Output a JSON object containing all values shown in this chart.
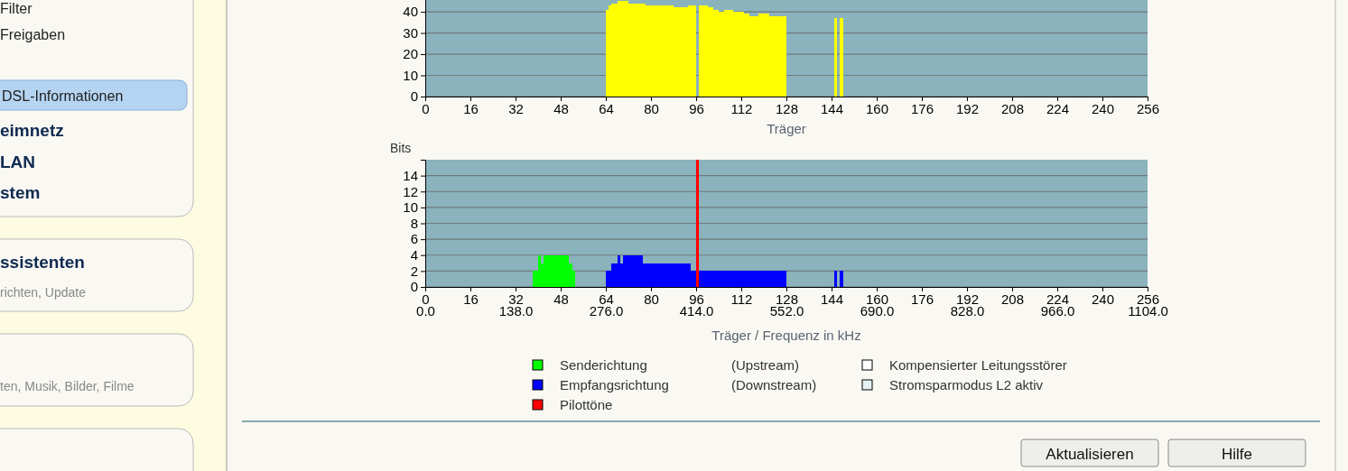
{
  "chart_data": [
    {
      "type": "area",
      "xlabel": "Träger",
      "x": [
        64,
        65,
        66,
        67,
        68,
        69,
        70,
        71,
        72,
        73,
        74,
        75,
        76,
        77,
        78,
        79,
        80,
        81,
        82,
        83,
        84,
        85,
        86,
        87,
        88,
        89,
        90,
        91,
        92,
        93,
        94,
        95,
        97,
        98,
        99,
        100,
        101,
        102,
        103,
        104,
        105,
        106,
        107,
        108,
        109,
        110,
        111,
        112,
        113,
        114,
        115,
        116,
        117,
        118,
        119,
        120,
        121,
        122,
        123,
        124,
        125,
        126,
        127,
        145,
        147
      ],
      "series": [
        {
          "color": "#ffff00",
          "values": [
            41,
            43,
            44,
            44,
            45,
            45,
            45,
            45,
            44,
            44,
            44,
            44,
            44,
            44,
            43,
            43,
            43,
            43,
            43,
            43,
            43,
            43,
            43,
            43,
            42,
            42,
            42,
            42,
            42,
            43,
            43,
            43,
            43,
            43,
            43,
            42,
            42,
            41,
            41,
            40,
            40,
            41,
            41,
            41,
            40,
            40,
            40,
            40,
            39,
            39,
            38,
            38,
            38,
            39,
            39,
            39,
            39,
            38,
            38,
            38,
            38,
            38,
            38,
            37,
            37
          ]
        }
      ],
      "xlim": [
        0,
        256
      ],
      "xticks": [
        0,
        16,
        32,
        48,
        64,
        80,
        96,
        112,
        128,
        144,
        160,
        176,
        192,
        208,
        224,
        240,
        256
      ],
      "ylim": [
        0,
        46
      ],
      "yticks": [
        0,
        10,
        20,
        30,
        40
      ],
      "grid": "y"
    },
    {
      "type": "area",
      "xlabel": "Träger / Frequenz in kHz",
      "ylabel": "Bits",
      "series": [
        {
          "name": "Senderichtung (Upstream)",
          "color": "#00ff00",
          "x": [
            38,
            39,
            40,
            41,
            42,
            43,
            44,
            45,
            46,
            47,
            48,
            49,
            50,
            51,
            52
          ],
          "values": [
            2,
            2,
            4,
            3,
            4,
            4,
            4,
            4,
            4,
            4,
            4,
            4,
            4,
            3,
            2
          ]
        },
        {
          "name": "Empfangsrichtung (Downstream)",
          "color": "#0000ff",
          "x": [
            64,
            65,
            66,
            67,
            68,
            69,
            70,
            71,
            72,
            73,
            74,
            75,
            76,
            77,
            78,
            79,
            80,
            81,
            82,
            83,
            84,
            85,
            86,
            87,
            88,
            89,
            90,
            91,
            92,
            93,
            94,
            95,
            96,
            97,
            98,
            99,
            100,
            101,
            102,
            103,
            104,
            105,
            106,
            107,
            108,
            109,
            110,
            111,
            112,
            113,
            114,
            115,
            116,
            117,
            118,
            119,
            120,
            121,
            122,
            123,
            124,
            125,
            126,
            127,
            145,
            147
          ],
          "values": [
            2,
            2,
            3,
            3,
            4,
            3,
            4,
            4,
            4,
            4,
            4,
            4,
            4,
            3,
            3,
            3,
            3,
            3,
            3,
            3,
            3,
            3,
            3,
            3,
            3,
            3,
            3,
            3,
            3,
            3,
            2,
            2,
            2,
            2,
            2,
            2,
            2,
            2,
            2,
            2,
            2,
            2,
            2,
            2,
            2,
            2,
            2,
            2,
            2,
            2,
            2,
            2,
            2,
            2,
            2,
            2,
            2,
            2,
            2,
            2,
            2,
            2,
            2,
            2,
            2,
            2
          ]
        },
        {
          "name": "Pilottöne",
          "type": "bar",
          "color": "#ff0000",
          "x": [
            96
          ],
          "values": [
            16
          ]
        },
        {
          "name": "Kompensierter Leitungsstörer",
          "color": "#ffffff"
        },
        {
          "name": "Stromsparmodus L2 aktiv",
          "color": "#e4f2f4"
        }
      ],
      "xlim": [
        0,
        256
      ],
      "xticks": [
        0,
        16,
        32,
        48,
        64,
        80,
        96,
        112,
        128,
        144,
        160,
        176,
        192,
        208,
        224,
        240,
        256
      ],
      "x2lim": [
        0,
        1104
      ],
      "x2ticks": [
        {
          "value": 0,
          "label": "0.0"
        },
        {
          "value": 138,
          "label": "138.0"
        },
        {
          "value": 276,
          "label": "276.0"
        },
        {
          "value": 414,
          "label": "414.0"
        },
        {
          "value": 552,
          "label": "552.0"
        },
        {
          "value": 690,
          "label": "690.0"
        },
        {
          "value": 828,
          "label": "828.0"
        },
        {
          "value": 966,
          "label": "966.0"
        },
        {
          "value": 1104,
          "label": "1104.0"
        }
      ],
      "ylim": [
        0,
        16
      ],
      "yticks": [
        0,
        2,
        4,
        6,
        8,
        10,
        12,
        14
      ],
      "grid": "y",
      "legend": "bottom"
    },
    {
      "type": "other",
      "annotations": [
        "Filter",
        "Freigaben",
        "DSL-Informationen",
        "eimnetz",
        "LAN",
        "stem",
        "ssistenten",
        "richten, Update",
        "ten, Musik, Bilder, Filme",
        "Aktualisieren",
        "Hilfe"
      ]
    }
  ]
}
